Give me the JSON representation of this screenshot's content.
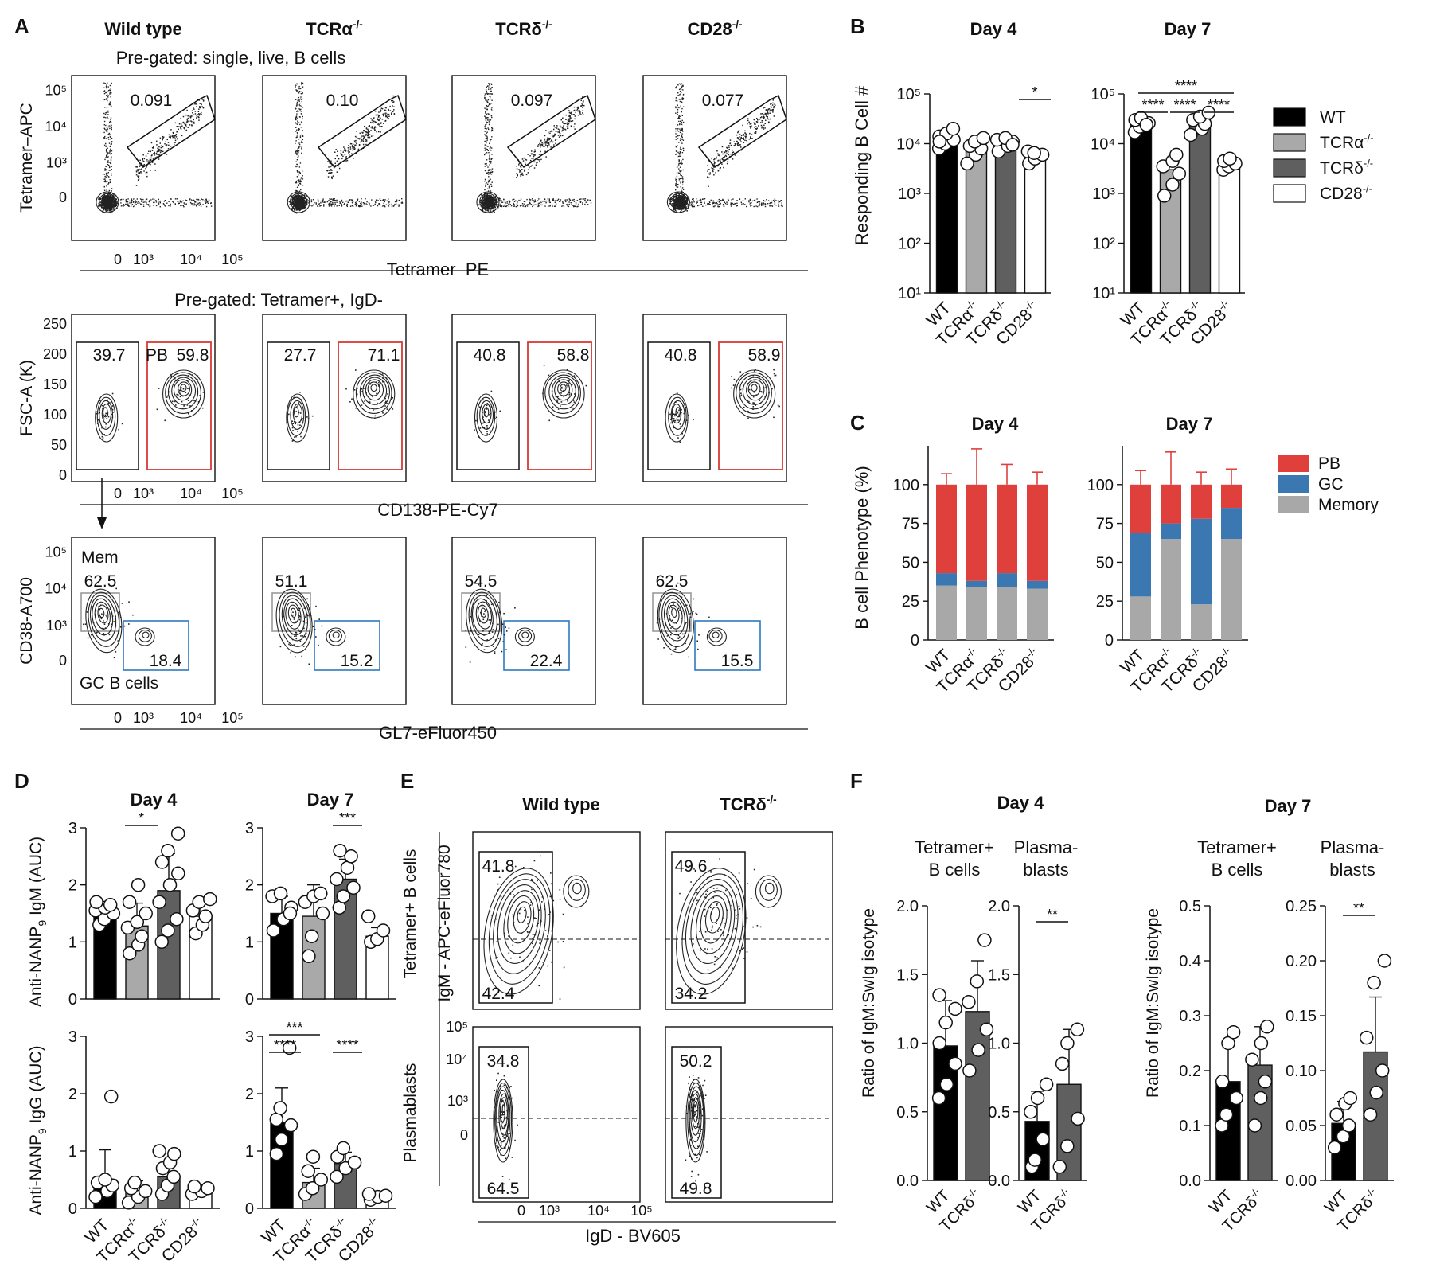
{
  "panel_labels": {
    "A": "A",
    "B": "B",
    "C": "C",
    "D": "D",
    "E": "E",
    "F": "F"
  },
  "colors": {
    "wt": "#000000",
    "tcra": "#a9a9a9",
    "tcrd": "#5f5f5f",
    "cd28": "#ffffff",
    "pb": "#e0403c",
    "gc": "#3b78b2",
    "memory": "#a8a8a8",
    "pb_gate": "#d63b33",
    "gc_gate": "#2f79c0",
    "mem_gate": "#9a9a9a"
  },
  "panelA": {
    "genotypes": [
      "Wild type",
      "TCRα",
      "TCRδ",
      "CD28"
    ],
    "ko_superscript": "-/-",
    "row1": {
      "pregate": "Pre-gated: single, live, B cells",
      "ylabel": "Tetramer–APC",
      "xlabel": "Tetramer–PE",
      "yticks": [
        "10⁵",
        "10⁴",
        "10³",
        "0"
      ],
      "xticks": [
        "0",
        "10³",
        "10⁴",
        "10⁵"
      ],
      "values": [
        "0.091",
        "0.10",
        "0.097",
        "0.077"
      ]
    },
    "row2": {
      "pregate": "Pre-gated: Tetramer+, IgD-",
      "ylabel": "FSC-A (K)",
      "xlabel": "CD138-PE-Cy7",
      "yticks": [
        "250",
        "200",
        "150",
        "100",
        "50",
        "0"
      ],
      "xticks": [
        "0",
        "10³",
        "10⁴",
        "10⁵"
      ],
      "left": [
        "39.7",
        "27.7",
        "40.8",
        "40.8"
      ],
      "right": [
        "59.8",
        "71.1",
        "58.8",
        "58.9"
      ],
      "pb_label": "PB"
    },
    "row3": {
      "ylabel": "CD38-A700",
      "xlabel": "GL7-eFluor450",
      "yticks": [
        "10⁵",
        "10⁴",
        "10³",
        "0"
      ],
      "xticks": [
        "0",
        "10³",
        "10⁴",
        "10⁵"
      ],
      "mem": [
        "62.5",
        "51.1",
        "54.5",
        "62.5"
      ],
      "gc": [
        "18.4",
        "15.2",
        "22.4",
        "15.5"
      ],
      "mem_label": "Mem",
      "gc_label": "GC B cells"
    }
  },
  "panelB": {
    "titles": [
      "Day 4",
      "Day 7"
    ],
    "ylabel": "Responding B Cell #",
    "yticks": [
      "10⁵",
      "10⁴",
      "10³",
      "10²",
      "10¹"
    ],
    "ko_superscript": "-/-",
    "xlabels": [
      "WT",
      "TCRα",
      "TCRδ",
      "CD28"
    ],
    "sig_day4": "*",
    "sig_day7": [
      "****",
      "****",
      "****",
      "****"
    ],
    "legend": [
      {
        "label": "WT",
        "sup": ""
      },
      {
        "label": "TCRα",
        "sup": "-/-"
      },
      {
        "label": "TCRδ",
        "sup": "-/-"
      },
      {
        "label": "CD28",
        "sup": "-/-"
      }
    ]
  },
  "panelC": {
    "titles": [
      "Day 4",
      "Day 7"
    ],
    "ylabel": "B cell Phenotype (%)",
    "yticks": [
      "100",
      "75",
      "50",
      "25",
      "0"
    ],
    "xlabels": [
      "WT",
      "TCRα",
      "TCRδ",
      "CD28"
    ],
    "ko_superscript": "-/-",
    "legend": [
      "PB",
      "GC",
      "Memory"
    ]
  },
  "panelD": {
    "titles": [
      "Day 4",
      "Day 7"
    ],
    "ylabel_top_a": "Anti-NANP",
    "ylabel_top_sub": "9",
    "ylabel_top_b": " IgM (AUC)",
    "ylabel_bot_a": "Anti-NANP",
    "ylabel_bot_sub": "9",
    "ylabel_bot_b": " IgG (AUC)",
    "yticks": [
      "3",
      "2",
      "1",
      "0"
    ],
    "xlabels": [
      "WT",
      "TCRα",
      "TCRδ",
      "CD28"
    ],
    "ko_superscript": "-/-",
    "sig_igm_d4": "*",
    "sig_igm_d7": "***",
    "sig_igg_d7": [
      "***",
      "****",
      "****"
    ]
  },
  "panelE": {
    "titles": [
      "Wild type",
      "TCRδ"
    ],
    "ko_superscript": "-/-",
    "row_labels": [
      "Tetramer+ B cells",
      "Plasmablasts"
    ],
    "ylabel": "IgM - APC-eFluor780",
    "xlabel": "IgD - BV605",
    "yticks": [
      "10⁵",
      "10⁴",
      "10³",
      "0"
    ],
    "xticks": [
      "0",
      "10³",
      "10⁴",
      "10⁵"
    ],
    "top_values": [
      [
        "41.8",
        "42.4"
      ],
      [
        "49.6",
        "34.2"
      ]
    ],
    "bottom_values": [
      [
        "34.8",
        "64.5"
      ],
      [
        "50.2",
        "49.8"
      ]
    ]
  },
  "panelF": {
    "days": [
      "Day 4",
      "Day 7"
    ],
    "sub_titles": [
      [
        "Tetramer+",
        "B cells"
      ],
      [
        "Plasma-",
        "blasts"
      ]
    ],
    "ylabel": "Ratio of IgM:SwIg isotype",
    "xlabels": [
      "WT",
      "TCRδ"
    ],
    "ko_superscript": "-/-",
    "yticks_a": [
      "2.0",
      "1.5",
      "1.0",
      "0.5",
      "0.0"
    ],
    "yticks_b": [
      "0.5",
      "0.4",
      "0.3",
      "0.2",
      "0.1",
      "0.0"
    ],
    "yticks_c": [
      "0.25",
      "0.20",
      "0.15",
      "0.10",
      "0.05",
      "0.00"
    ],
    "sig": "**"
  },
  "chart_data": [
    {
      "id": "B_day4",
      "type": "bar",
      "title": "Day 4",
      "ylabel": "Responding B Cell #",
      "yscale": "log",
      "ylim": [
        10,
        100000
      ],
      "categories": [
        "WT",
        "TCRα-/-",
        "TCRδ-/-",
        "CD28-/-"
      ],
      "values": [
        12000,
        8000,
        11000,
        6000
      ],
      "points": [
        [
          8000,
          10000,
          12000,
          14000,
          16000,
          20000,
          11000
        ],
        [
          4000,
          6000,
          8000,
          9000,
          11000,
          13000
        ],
        [
          7000,
          9000,
          11000,
          12000,
          13000,
          9500
        ],
        [
          4000,
          5000,
          6000,
          7000,
          6500
        ]
      ]
    },
    {
      "id": "B_day7",
      "type": "bar",
      "title": "Day 7",
      "ylabel": "Responding B Cell #",
      "yscale": "log",
      "ylim": [
        10,
        100000
      ],
      "categories": [
        "WT",
        "TCRα-/-",
        "TCRδ-/-",
        "CD28-/-"
      ],
      "values": [
        25000,
        3000,
        30000,
        4000
      ],
      "points": [
        [
          17000,
          22000,
          26000,
          30000,
          33000,
          24000
        ],
        [
          900,
          1500,
          2500,
          3500,
          4500,
          6000
        ],
        [
          15000,
          20000,
          25000,
          30000,
          35000,
          42000
        ],
        [
          3000,
          3500,
          4000,
          4500,
          5000
        ]
      ]
    },
    {
      "id": "C_day4",
      "type": "bar",
      "stacked": true,
      "title": "Day 4",
      "ylabel": "B cell Phenotype (%)",
      "ylim": [
        0,
        125
      ],
      "categories": [
        "WT",
        "TCRα-/-",
        "TCRδ-/-",
        "CD28-/-"
      ],
      "series": [
        {
          "name": "Memory",
          "values": [
            35,
            34,
            34,
            33
          ],
          "err": [
            0,
            0,
            0,
            0
          ]
        },
        {
          "name": "GC",
          "values": [
            8,
            4,
            9,
            5
          ],
          "err": [
            2,
            15,
            5,
            2
          ]
        },
        {
          "name": "PB",
          "values": [
            57,
            62,
            57,
            62
          ],
          "err": [
            7,
            23,
            13,
            8
          ]
        }
      ]
    },
    {
      "id": "C_day7",
      "type": "bar",
      "stacked": true,
      "title": "Day 7",
      "ylabel": "B cell Phenotype (%)",
      "ylim": [
        0,
        125
      ],
      "categories": [
        "WT",
        "TCRα-/-",
        "TCRδ-/-",
        "CD28-/-"
      ],
      "series": [
        {
          "name": "Memory",
          "values": [
            28,
            65,
            23,
            65
          ],
          "err": [
            5,
            0,
            5,
            7
          ]
        },
        {
          "name": "GC",
          "values": [
            41,
            10,
            55,
            20
          ],
          "err": [
            8,
            11,
            10,
            4
          ]
        },
        {
          "name": "PB",
          "values": [
            31,
            25,
            22,
            15
          ],
          "err": [
            9,
            21,
            8,
            10
          ]
        }
      ]
    },
    {
      "id": "D_igm_day4",
      "type": "bar",
      "title": "Day 4",
      "ylabel": "Anti-NANP9 IgM (AUC)",
      "ylim": [
        0,
        3
      ],
      "categories": [
        "WT",
        "TCRα-/-",
        "TCRδ-/-",
        "CD28-/-"
      ],
      "values": [
        1.55,
        1.28,
        1.9,
        1.45
      ],
      "err": [
        0.15,
        0.4,
        0.65,
        0.25
      ],
      "points": [
        [
          1.3,
          1.4,
          1.5,
          1.55,
          1.6,
          1.65,
          1.7
        ],
        [
          0.8,
          0.95,
          1.1,
          1.25,
          1.35,
          1.5,
          1.7,
          2.0
        ],
        [
          1.0,
          1.2,
          1.4,
          1.7,
          2.0,
          2.2,
          2.4,
          2.6,
          2.9
        ],
        [
          1.15,
          1.3,
          1.45,
          1.55,
          1.7,
          1.75
        ]
      ]
    },
    {
      "id": "D_igm_day7",
      "type": "bar",
      "title": "Day 7",
      "ylabel": "Anti-NANP9 IgM (AUC)",
      "ylim": [
        0,
        3
      ],
      "categories": [
        "WT",
        "TCRα-/-",
        "TCRδ-/-",
        "CD28-/-"
      ],
      "values": [
        1.5,
        1.45,
        2.1,
        1.1
      ],
      "err": [
        0.3,
        0.55,
        0.35,
        0.15
      ],
      "points": [
        [
          1.2,
          1.4,
          1.6,
          1.8,
          1.85,
          1.5
        ],
        [
          0.75,
          1.1,
          1.5,
          1.7,
          1.8,
          1.85
        ],
        [
          1.6,
          1.8,
          1.95,
          2.1,
          2.3,
          2.5,
          2.6
        ],
        [
          1.0,
          1.05,
          1.2,
          1.45
        ]
      ]
    },
    {
      "id": "D_igg_day4",
      "type": "bar",
      "title": "Day 4",
      "ylabel": "Anti-NANP9 IgG (AUC)",
      "ylim": [
        0,
        3
      ],
      "categories": [
        "WT",
        "TCRα-/-",
        "TCRδ-/-",
        "CD28-/-"
      ],
      "values": [
        0.5,
        0.28,
        0.55,
        0.32
      ],
      "err": [
        0.52,
        0.2,
        0.25,
        0.08
      ],
      "points": [
        [
          0.2,
          0.3,
          0.4,
          0.45,
          0.5,
          1.95
        ],
        [
          0.1,
          0.2,
          0.3,
          0.35,
          0.45
        ],
        [
          0.25,
          0.4,
          0.55,
          0.7,
          0.8,
          0.95,
          1.0
        ],
        [
          0.25,
          0.3,
          0.35,
          0.38
        ]
      ]
    },
    {
      "id": "D_igg_day7",
      "type": "bar",
      "title": "Day 7",
      "ylabel": "Anti-NANP9 IgG (AUC)",
      "ylim": [
        0,
        3
      ],
      "categories": [
        "WT",
        "TCRα-/-",
        "TCRδ-/-",
        "CD28-/-"
      ],
      "values": [
        1.5,
        0.45,
        0.78,
        0.2
      ],
      "err": [
        0.6,
        0.25,
        0.2,
        0.05
      ],
      "points": [
        [
          0.95,
          1.2,
          1.45,
          1.55,
          1.75,
          2.8
        ],
        [
          0.25,
          0.35,
          0.5,
          0.65,
          0.9
        ],
        [
          0.55,
          0.7,
          0.8,
          0.9,
          1.05
        ],
        [
          0.15,
          0.2,
          0.22,
          0.25
        ]
      ]
    },
    {
      "id": "F_d4_tet",
      "type": "bar",
      "title": "Tetramer+ B cells (Day 4)",
      "ylabel": "Ratio of IgM:SwIg isotype",
      "ylim": [
        0,
        2.0
      ],
      "categories": [
        "WT",
        "TCRδ-/-"
      ],
      "values": [
        0.98,
        1.23
      ],
      "err": [
        0.33,
        0.37
      ],
      "points": [
        [
          0.6,
          0.7,
          0.85,
          1.0,
          1.15,
          1.25,
          1.35
        ],
        [
          0.8,
          0.95,
          1.1,
          1.3,
          1.45,
          1.75
        ]
      ]
    },
    {
      "id": "F_d4_pb",
      "type": "bar",
      "title": "Plasmablasts (Day 4)",
      "ylabel": "",
      "ylim": [
        0,
        2.0
      ],
      "categories": [
        "WT",
        "TCRδ-/-"
      ],
      "values": [
        0.43,
        0.7
      ],
      "err": [
        0.22,
        0.4
      ],
      "points": [
        [
          0.1,
          0.15,
          0.3,
          0.5,
          0.6,
          0.7
        ],
        [
          0.1,
          0.25,
          0.45,
          0.85,
          1.0,
          1.1
        ]
      ]
    },
    {
      "id": "F_d7_tet",
      "type": "bar",
      "title": "Tetramer+ B cells (Day 7)",
      "ylabel": "Ratio of IgM:SwIg isotype",
      "ylim": [
        0,
        0.5
      ],
      "categories": [
        "WT",
        "TCRδ-/-"
      ],
      "values": [
        0.18,
        0.21
      ],
      "err": [
        0.07,
        0.07
      ],
      "points": [
        [
          0.1,
          0.12,
          0.15,
          0.18,
          0.25,
          0.27
        ],
        [
          0.1,
          0.15,
          0.18,
          0.22,
          0.25,
          0.28
        ]
      ]
    },
    {
      "id": "F_d7_pb",
      "type": "bar",
      "title": "Plasmablasts (Day 7)",
      "ylabel": "",
      "ylim": [
        0,
        0.25
      ],
      "categories": [
        "WT",
        "TCRδ-/-"
      ],
      "values": [
        0.052,
        0.117
      ],
      "err": [
        0.02,
        0.05
      ],
      "points": [
        [
          0.03,
          0.04,
          0.05,
          0.06,
          0.07,
          0.075
        ],
        [
          0.06,
          0.08,
          0.1,
          0.13,
          0.18,
          0.2
        ]
      ]
    }
  ]
}
